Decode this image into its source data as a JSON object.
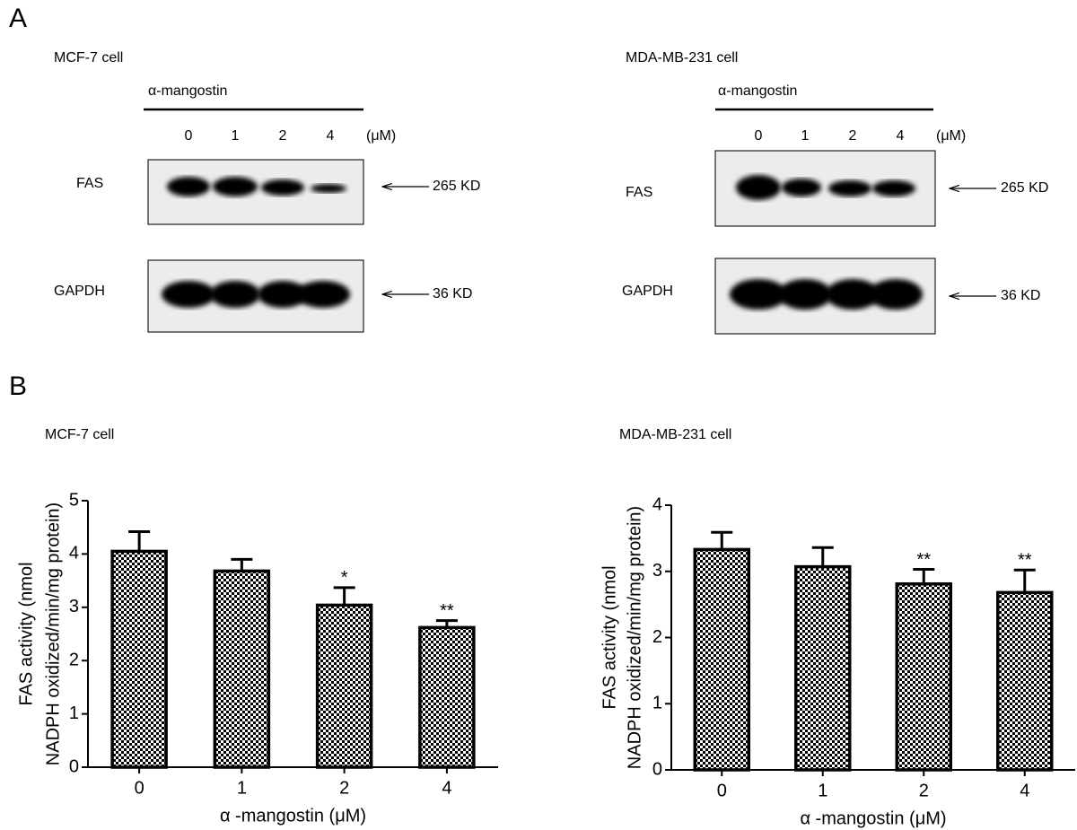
{
  "panel_a": {
    "label": "A",
    "blots": [
      {
        "cell": "MCF-7 cell",
        "treatment": "α-mangostin",
        "doses": [
          "0",
          "1",
          "2",
          "4"
        ],
        "unit": "(μM)",
        "rows": [
          {
            "protein": "FAS",
            "size": "265 KD"
          },
          {
            "protein": "GAPDH",
            "size": "36 KD"
          }
        ]
      },
      {
        "cell": "MDA-MB-231 cell",
        "treatment": "α-mangostin",
        "doses": [
          "0",
          "1",
          "2",
          "4"
        ],
        "unit": "(μM)",
        "rows": [
          {
            "protein": "FAS",
            "size": "265 KD"
          },
          {
            "protein": "GAPDH",
            "size": "36 KD"
          }
        ]
      }
    ]
  },
  "panel_b": {
    "label": "B"
  },
  "chart_data": [
    {
      "type": "bar",
      "title": "MCF-7 cell",
      "y_label": [
        "FAS activity (nmol",
        "NADPH oxidized/min/mg protein)"
      ],
      "x_label": "α -mangostin (μM)",
      "categories": [
        "0",
        "1",
        "2",
        "4"
      ],
      "values": [
        4.05,
        3.68,
        3.04,
        2.62
      ],
      "errors": [
        0.37,
        0.22,
        0.33,
        0.13
      ],
      "significance": [
        null,
        null,
        "*",
        "**"
      ],
      "color": "#000000",
      "ylim": [
        0,
        5
      ],
      "yticks": [
        0,
        1,
        2,
        3,
        4,
        5
      ]
    },
    {
      "type": "bar",
      "title": "MDA-MB-231 cell",
      "y_label": [
        "FAS activity (nmol",
        "NADPH oxidized/min/mg protein)"
      ],
      "x_label": "α -mangostin (μM)",
      "categories": [
        "0",
        "1",
        "2",
        "4"
      ],
      "values": [
        3.33,
        3.07,
        2.81,
        2.68
      ],
      "errors": [
        0.26,
        0.29,
        0.22,
        0.34
      ],
      "significance": [
        null,
        null,
        "**",
        "**"
      ],
      "color": "#000000",
      "ylim": [
        0,
        4
      ],
      "yticks": [
        0,
        1,
        2,
        3,
        4
      ]
    }
  ]
}
